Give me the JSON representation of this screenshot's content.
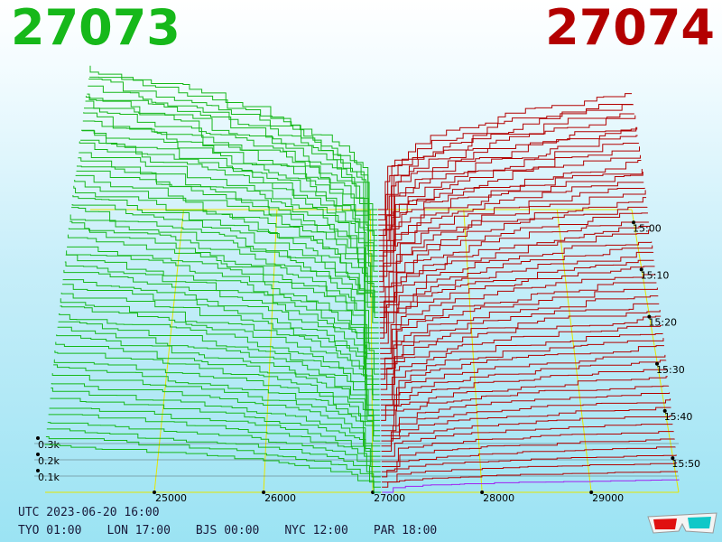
{
  "header": {
    "bid_price": "27073",
    "ask_price": "27074"
  },
  "footer": {
    "utc": "UTC 2023-06-20 16:00",
    "zones": [
      "TYO 01:00",
      "LON 17:00",
      "BJS 00:00",
      "NYC 12:00",
      "PAR 18:00"
    ]
  },
  "colors": {
    "bid": "#16b81a",
    "ask": "#b30000",
    "latest_ask": "#a020f0",
    "grid": "#e6e600"
  },
  "icons": {
    "stereo": "3d-glasses-icon"
  },
  "chart_data": {
    "type": "area",
    "price_ticks": [
      25000,
      26000,
      27000,
      28000,
      29000
    ],
    "price_tick_labels": [
      "25000",
      "26000",
      "27000",
      "28000",
      "29000"
    ],
    "time_ticks": [
      "15:00",
      "15:10",
      "15:20",
      "15:30",
      "15:40",
      "15:50"
    ],
    "volume_ticks": [
      "0.1k",
      "0.2k",
      "0.3k"
    ],
    "volume_tick_values": [
      100,
      200,
      300
    ],
    "price_range": [
      24000,
      29800
    ],
    "volume_range": [
      0,
      1600
    ],
    "mid_price": 27073.5,
    "snapshot_count": 56,
    "bid_depth_total_range": [
      300,
      1450
    ],
    "ask_depth_total_range": [
      80,
      1180
    ]
  }
}
